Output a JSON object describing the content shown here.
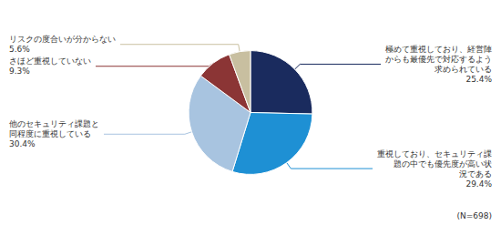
{
  "chart_data": {
    "type": "pie",
    "categories": [
      "極めて重視しており、経営陣\nからも最優先で対応するよう\n求められている",
      "重視しており、セキュリティ課\n題の中でも優先度が高い状\n況である",
      "他のセキュリティ課題と\n同程度に重視している",
      "さほど重視していない",
      "リスクの度合いが分からない"
    ],
    "values": [
      25.4,
      29.4,
      30.4,
      9.3,
      5.6
    ],
    "value_labels": [
      "25.4%",
      "29.4%",
      "30.4%",
      "9.3%",
      "5.6%"
    ],
    "data_labels": true,
    "colors": [
      "#1a2b5e",
      "#1e90d4",
      "#a8c4e0",
      "#8b3535",
      "#c8bfa0"
    ],
    "annotations": [
      "(N=698)"
    ]
  }
}
